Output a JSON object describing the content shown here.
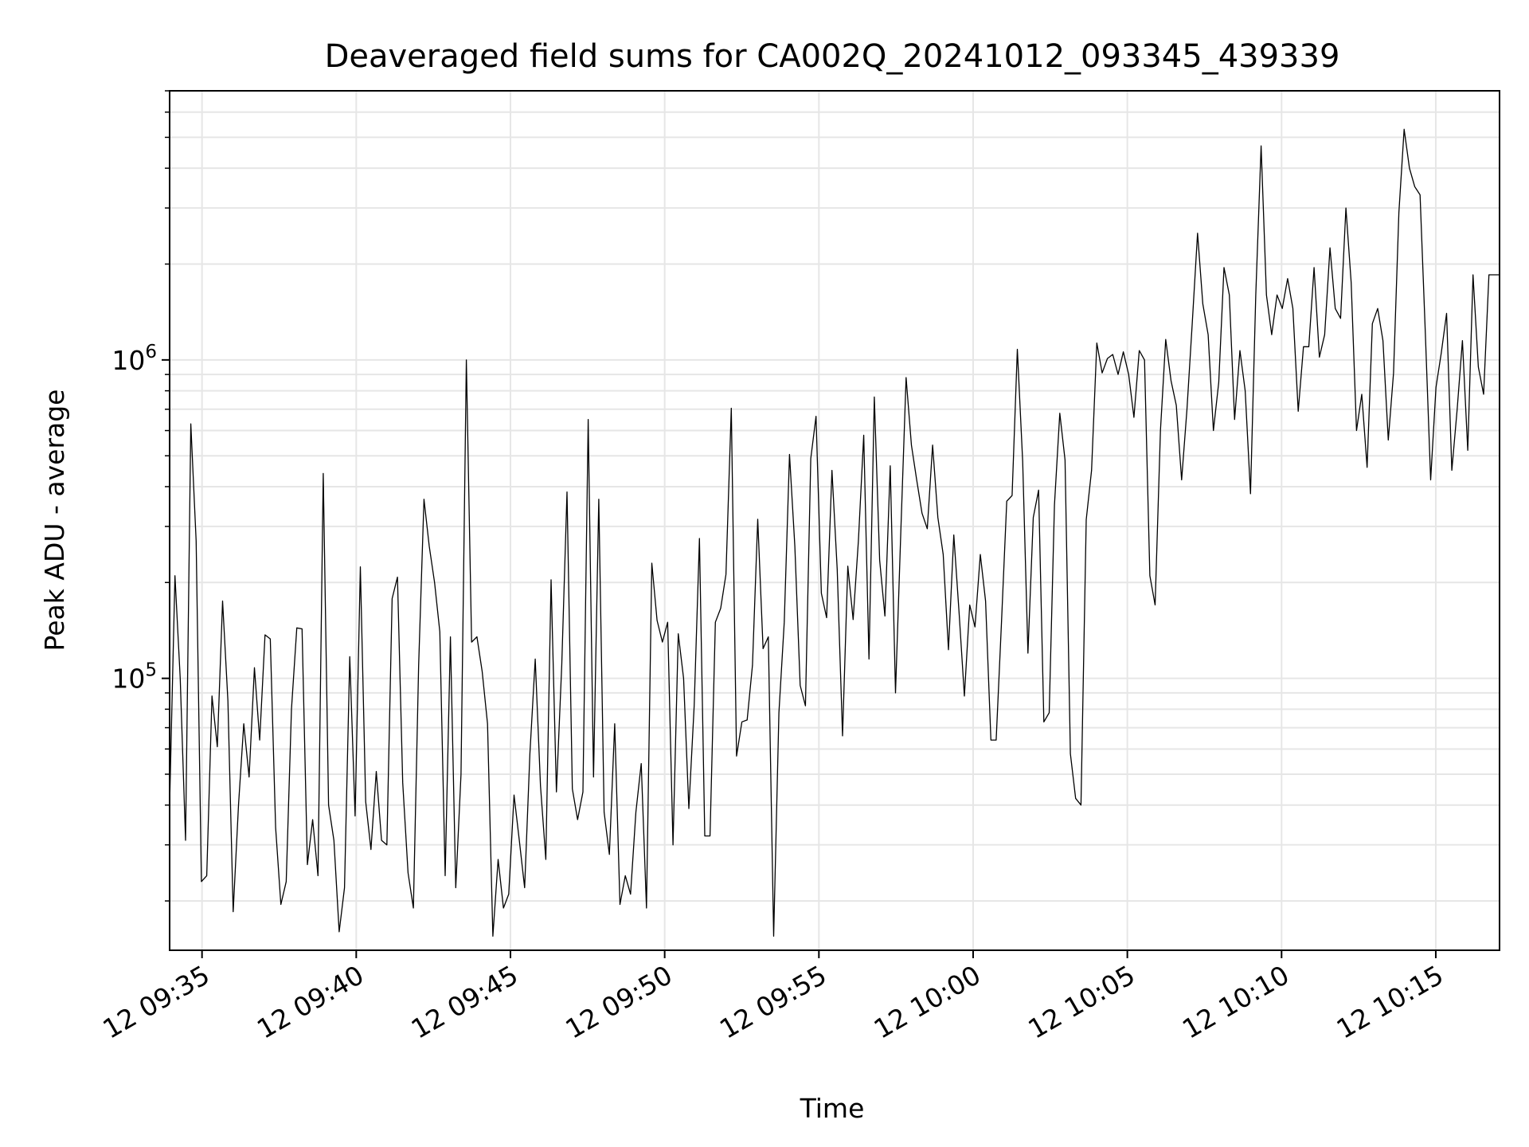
{
  "chart_data": {
    "type": "line",
    "title": "Deaveraged field sums for CA002Q_20241012_093345_439339",
    "xlabel": "Time",
    "ylabel": "Peak ADU - average",
    "yscale": "log",
    "grid": true,
    "line_color": "#000000",
    "grid_color": "#e6e6e6",
    "xlim": [
      "2024-10-12 09:33:57",
      "2024-10-12 10:17:04"
    ],
    "ylim": [
      14000,
      7000000
    ],
    "x_ticks": [
      {
        "value": "2024-10-12 09:35:00",
        "label": "12 09:35"
      },
      {
        "value": "2024-10-12 09:40:00",
        "label": "12 09:40"
      },
      {
        "value": "2024-10-12 09:45:00",
        "label": "12 09:45"
      },
      {
        "value": "2024-10-12 09:50:00",
        "label": "12 09:50"
      },
      {
        "value": "2024-10-12 09:55:00",
        "label": "12 09:55"
      },
      {
        "value": "2024-10-12 10:00:00",
        "label": "12 10:00"
      },
      {
        "value": "2024-10-12 10:05:00",
        "label": "12 10:05"
      },
      {
        "value": "2024-10-12 10:10:00",
        "label": "12 10:10"
      },
      {
        "value": "2024-10-12 10:15:00",
        "label": "12 10:15"
      }
    ],
    "y_ticks": [
      {
        "value": 100000,
        "base": "10",
        "exp": "5"
      },
      {
        "value": 1000000,
        "base": "10",
        "exp": "6"
      }
    ],
    "series": [
      {
        "x_start": "2024-10-12 09:33:57",
        "x_end": "2024-10-12 10:17:04",
        "values": [
          40000,
          210000,
          100000,
          31000,
          630000,
          270000,
          23000,
          24000,
          88000,
          61000,
          175000,
          85000,
          18500,
          40000,
          72000,
          49000,
          108000,
          64000,
          137000,
          133000,
          34000,
          19500,
          23000,
          80000,
          144000,
          143000,
          26000,
          36000,
          24000,
          440000,
          40000,
          31000,
          16000,
          22000,
          117000,
          37000,
          224000,
          41000,
          29000,
          51000,
          31000,
          30000,
          178000,
          208000,
          47000,
          24500,
          19000,
          110000,
          365000,
          260000,
          200000,
          140000,
          24000,
          135000,
          22000,
          50000,
          1000000,
          130000,
          135000,
          105000,
          72000,
          15500,
          27000,
          19000,
          21000,
          43000,
          31000,
          22000,
          58000,
          115000,
          46000,
          27000,
          204000,
          44000,
          110000,
          385000,
          45000,
          36000,
          44000,
          650000,
          49000,
          365000,
          38000,
          28000,
          72000,
          19500,
          24000,
          21000,
          38000,
          54000,
          19000,
          230000,
          152000,
          130000,
          150000,
          30000,
          138000,
          100000,
          39000,
          82000,
          275000,
          32000,
          32000,
          150000,
          166000,
          212000,
          705000,
          57000,
          73000,
          74000,
          110000,
          316000,
          124000,
          135000,
          15500,
          78000,
          150000,
          505000,
          260000,
          95000,
          82000,
          490000,
          665000,
          185000,
          155000,
          450000,
          220000,
          66000,
          225000,
          153000,
          270000,
          580000,
          115000,
          765000,
          235000,
          157000,
          465000,
          90000,
          290000,
          880000,
          540000,
          420000,
          330000,
          295000,
          540000,
          320000,
          245000,
          123000,
          282000,
          160000,
          88000,
          170000,
          145000,
          245000,
          175000,
          64000,
          64000,
          150000,
          360000,
          375000,
          1080000,
          480000,
          120000,
          320000,
          390000,
          73000,
          78000,
          350000,
          680000,
          485000,
          58000,
          42000,
          40000,
          315000,
          450000,
          1130000,
          910000,
          1010000,
          1040000,
          900000,
          1060000,
          900000,
          660000,
          1070000,
          1000000,
          210000,
          170000,
          600000,
          1160000,
          860000,
          720000,
          420000,
          700000,
          1300000,
          2500000,
          1500000,
          1200000,
          600000,
          850000,
          1950000,
          1600000,
          650000,
          1070000,
          800000,
          380000,
          1600000,
          4700000,
          1600000,
          1200000,
          1600000,
          1450000,
          1800000,
          1450000,
          690000,
          1100000,
          1100000,
          1950000,
          1020000,
          1200000,
          2250000,
          1450000,
          1350000,
          3000000,
          1750000,
          600000,
          780000,
          460000,
          1300000,
          1450000,
          1150000,
          560000,
          910000,
          2900000,
          5300000,
          4000000,
          3500000,
          3300000,
          1200000,
          420000,
          820000,
          1050000,
          1400000,
          450000,
          700000,
          1150000,
          520000,
          1850000,
          950000,
          780000,
          1850000,
          1850000,
          1850000
        ]
      }
    ]
  }
}
